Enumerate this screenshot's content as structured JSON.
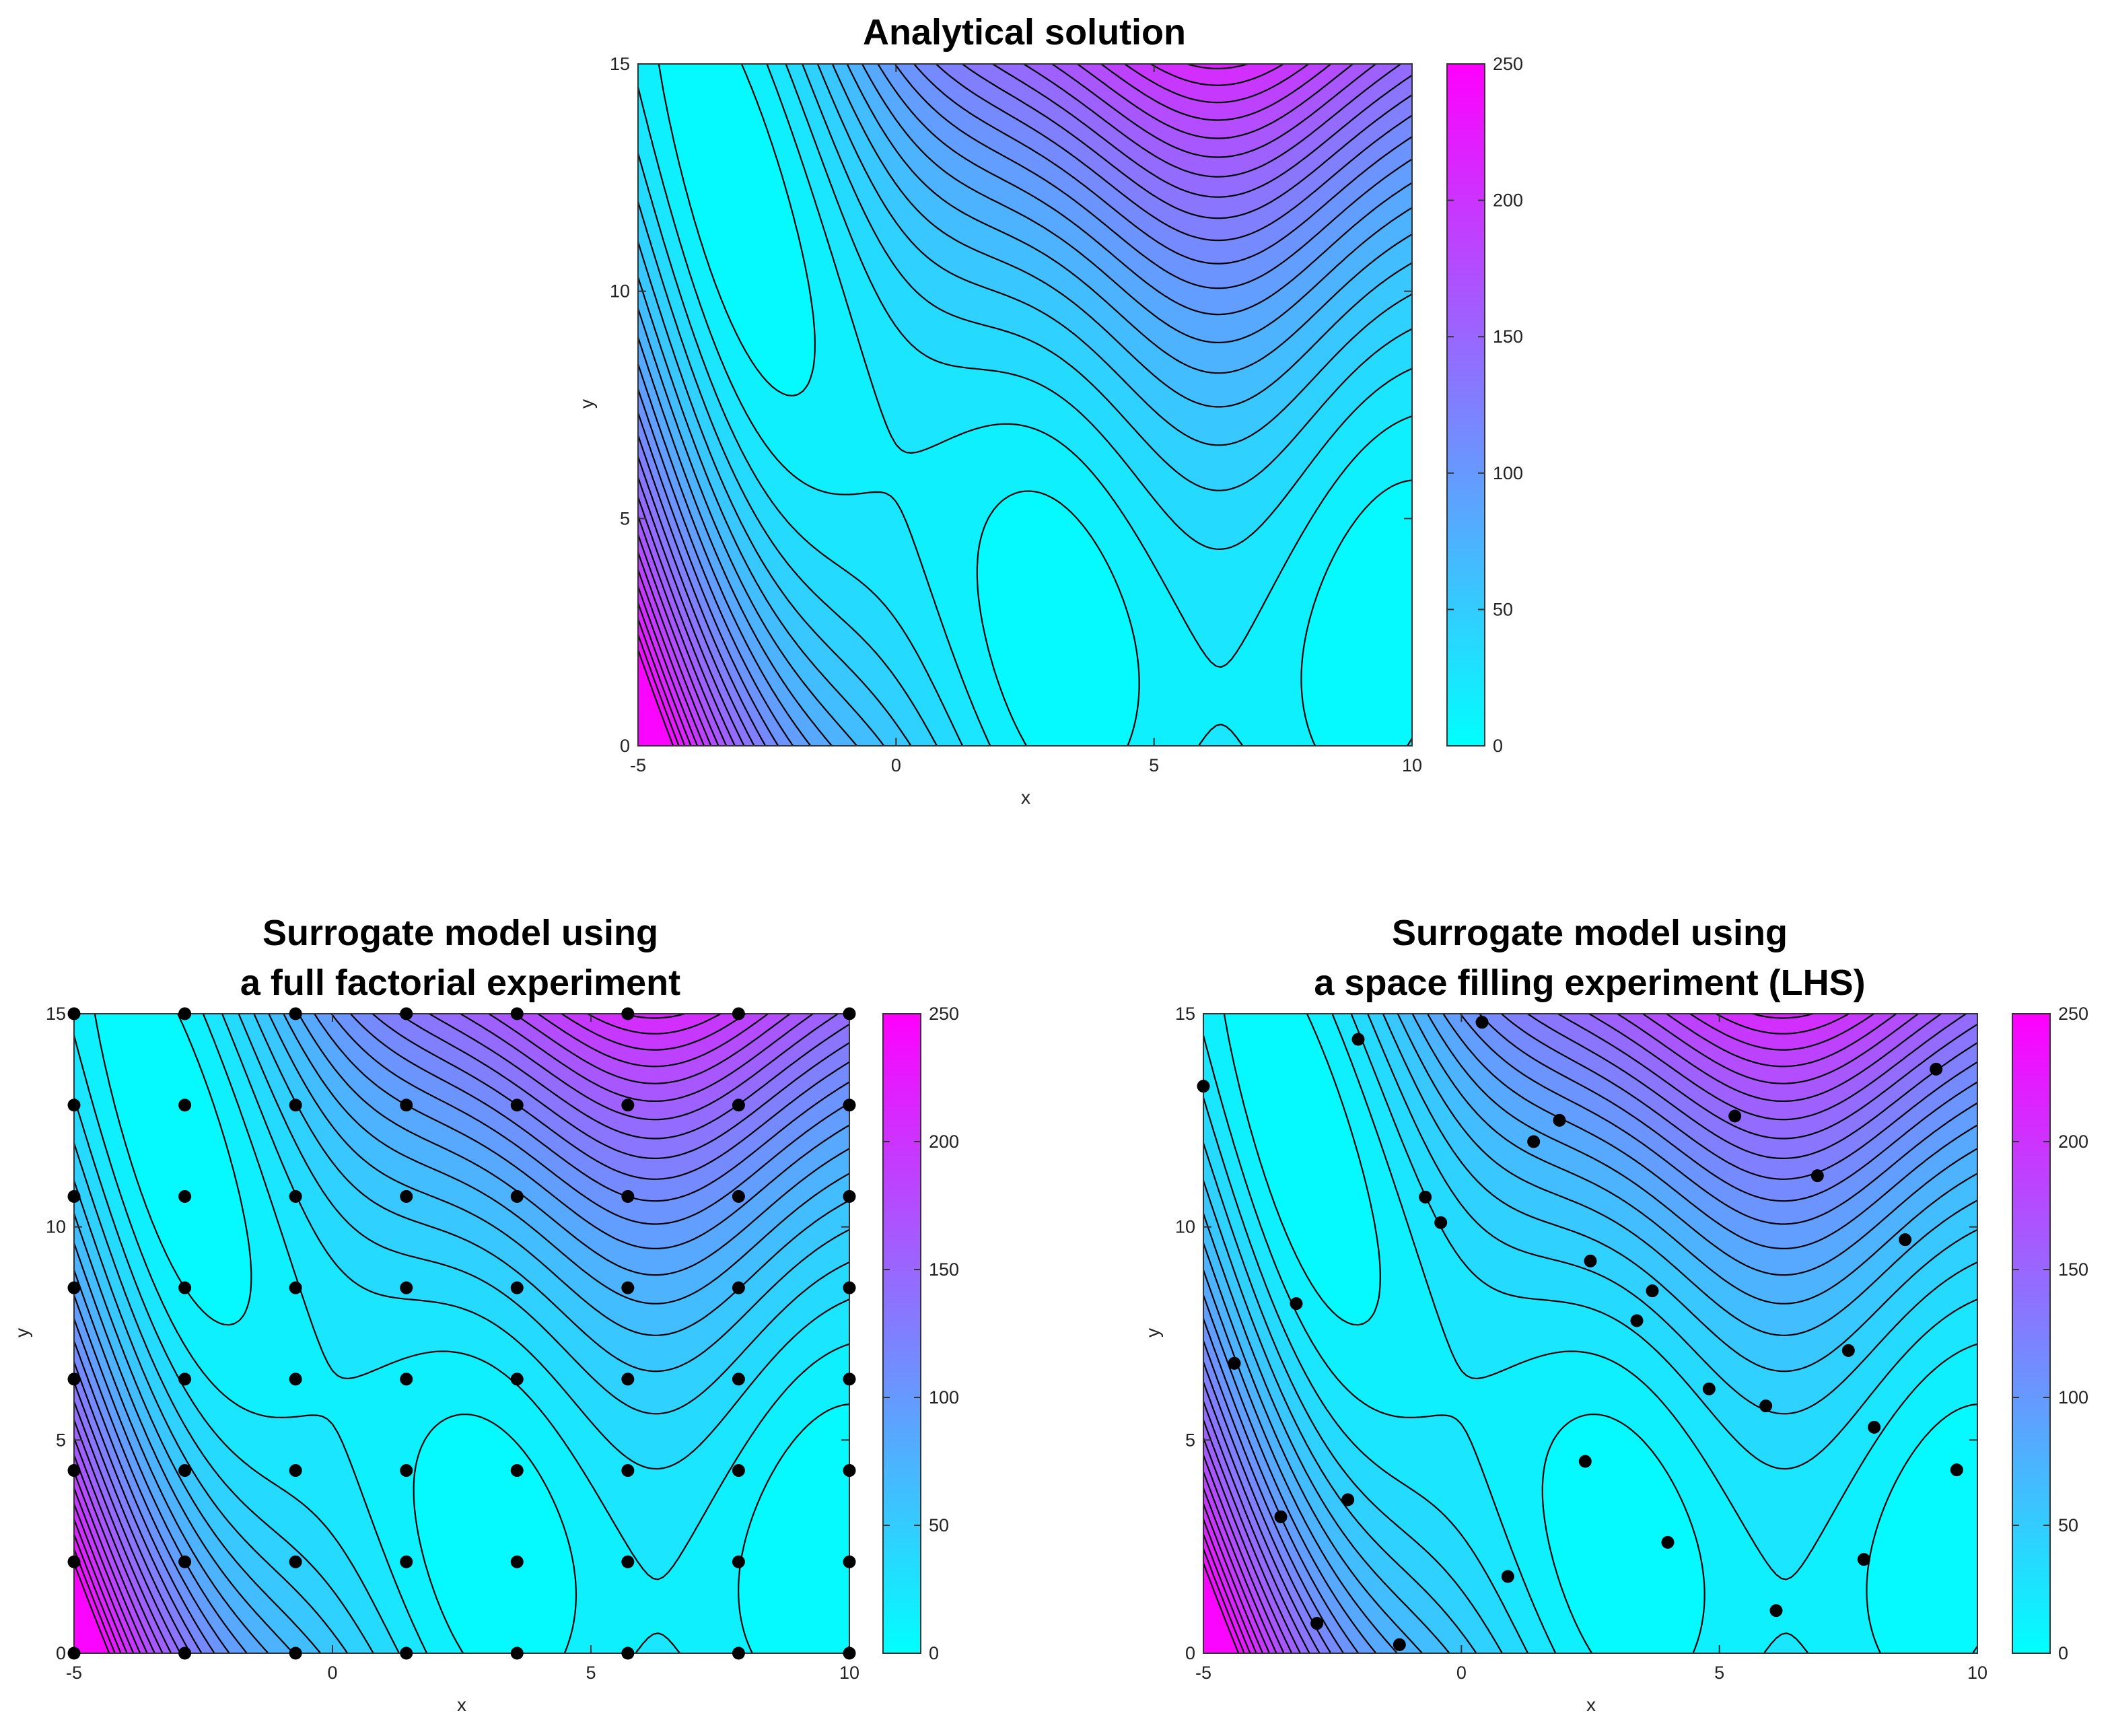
{
  "figure": {
    "colormap": {
      "name": "cool",
      "low": "#00ffff",
      "high": "#ff00ff"
    },
    "contour_line_color": "#000000",
    "marker_color": "#000000"
  },
  "chart_data": [
    {
      "type": "contour",
      "id": "analytical",
      "title_lines": [
        "Analytical solution"
      ],
      "xlabel": "x",
      "ylabel": "y",
      "xlim": [
        -5,
        10
      ],
      "ylim": [
        0,
        15
      ],
      "xticks": [
        -5,
        0,
        5,
        10
      ],
      "yticks": [
        0,
        5,
        10,
        15
      ],
      "colorbar": {
        "range": [
          0,
          250
        ],
        "ticks": [
          0,
          50,
          100,
          150,
          200,
          250
        ]
      },
      "contour_levels": 25,
      "points": []
    },
    {
      "type": "contour",
      "id": "full-factorial",
      "title_lines": [
        "Surrogate model using",
        "a full factorial experiment"
      ],
      "xlabel": "x",
      "ylabel": "y",
      "xlim": [
        -5,
        10
      ],
      "ylim": [
        0,
        15
      ],
      "xticks": [
        -5,
        0,
        5,
        10
      ],
      "yticks": [
        0,
        5,
        10,
        15
      ],
      "colorbar": {
        "range": [
          0,
          250
        ],
        "ticks": [
          0,
          50,
          100,
          150,
          200,
          250
        ]
      },
      "contour_levels": 25,
      "points": [
        [
          -5,
          0
        ],
        [
          -2.857,
          0
        ],
        [
          -0.714,
          0
        ],
        [
          1.429,
          0
        ],
        [
          3.571,
          0
        ],
        [
          5.714,
          0
        ],
        [
          7.857,
          0
        ],
        [
          10,
          0
        ],
        [
          -5,
          2.143
        ],
        [
          -2.857,
          2.143
        ],
        [
          -0.714,
          2.143
        ],
        [
          1.429,
          2.143
        ],
        [
          3.571,
          2.143
        ],
        [
          5.714,
          2.143
        ],
        [
          7.857,
          2.143
        ],
        [
          10,
          2.143
        ],
        [
          -5,
          4.286
        ],
        [
          -2.857,
          4.286
        ],
        [
          -0.714,
          4.286
        ],
        [
          1.429,
          4.286
        ],
        [
          3.571,
          4.286
        ],
        [
          5.714,
          4.286
        ],
        [
          7.857,
          4.286
        ],
        [
          10,
          4.286
        ],
        [
          -5,
          6.429
        ],
        [
          -2.857,
          6.429
        ],
        [
          -0.714,
          6.429
        ],
        [
          1.429,
          6.429
        ],
        [
          3.571,
          6.429
        ],
        [
          5.714,
          6.429
        ],
        [
          7.857,
          6.429
        ],
        [
          10,
          6.429
        ],
        [
          -5,
          8.571
        ],
        [
          -2.857,
          8.571
        ],
        [
          -0.714,
          8.571
        ],
        [
          1.429,
          8.571
        ],
        [
          3.571,
          8.571
        ],
        [
          5.714,
          8.571
        ],
        [
          7.857,
          8.571
        ],
        [
          10,
          8.571
        ],
        [
          -5,
          10.714
        ],
        [
          -2.857,
          10.714
        ],
        [
          -0.714,
          10.714
        ],
        [
          1.429,
          10.714
        ],
        [
          3.571,
          10.714
        ],
        [
          5.714,
          10.714
        ],
        [
          7.857,
          10.714
        ],
        [
          10,
          10.714
        ],
        [
          -5,
          12.857
        ],
        [
          -2.857,
          12.857
        ],
        [
          -0.714,
          12.857
        ],
        [
          1.429,
          12.857
        ],
        [
          3.571,
          12.857
        ],
        [
          5.714,
          12.857
        ],
        [
          7.857,
          12.857
        ],
        [
          10,
          12.857
        ],
        [
          -5,
          15
        ],
        [
          -2.857,
          15
        ],
        [
          -0.714,
          15
        ],
        [
          1.429,
          15
        ],
        [
          3.571,
          15
        ],
        [
          5.714,
          15
        ],
        [
          7.857,
          15
        ],
        [
          10,
          15
        ]
      ]
    },
    {
      "type": "contour",
      "id": "lhs",
      "title_lines": [
        "Surrogate model using",
        "a space filling experiment (LHS)"
      ],
      "xlabel": "x",
      "ylabel": "y",
      "xlim": [
        -5,
        10
      ],
      "ylim": [
        0,
        15
      ],
      "xticks": [
        -5,
        0,
        5,
        10
      ],
      "yticks": [
        0,
        5,
        10,
        15
      ],
      "colorbar": {
        "range": [
          0,
          250
        ],
        "ticks": [
          0,
          50,
          100,
          150,
          200,
          250
        ]
      },
      "contour_levels": 25,
      "points": [
        [
          -5.0,
          13.3
        ],
        [
          -2.0,
          14.4
        ],
        [
          0.4,
          14.8
        ],
        [
          -4.4,
          6.8
        ],
        [
          -3.2,
          8.2
        ],
        [
          -0.7,
          10.7
        ],
        [
          -0.4,
          10.1
        ],
        [
          1.4,
          12.0
        ],
        [
          1.9,
          12.5
        ],
        [
          2.5,
          9.2
        ],
        [
          3.7,
          8.5
        ],
        [
          3.4,
          7.8
        ],
        [
          4.8,
          6.2
        ],
        [
          5.3,
          12.6
        ],
        [
          5.9,
          5.8
        ],
        [
          6.9,
          11.2
        ],
        [
          7.5,
          7.1
        ],
        [
          8.0,
          5.3
        ],
        [
          8.6,
          9.7
        ],
        [
          9.2,
          13.7
        ],
        [
          9.6,
          4.3
        ],
        [
          -3.5,
          3.2
        ],
        [
          -2.2,
          3.6
        ],
        [
          2.4,
          4.5
        ],
        [
          4.0,
          2.6
        ],
        [
          0.9,
          1.8
        ],
        [
          -2.8,
          0.7
        ],
        [
          -1.2,
          0.2
        ],
        [
          6.1,
          1.0
        ],
        [
          7.8,
          2.2
        ]
      ]
    }
  ]
}
